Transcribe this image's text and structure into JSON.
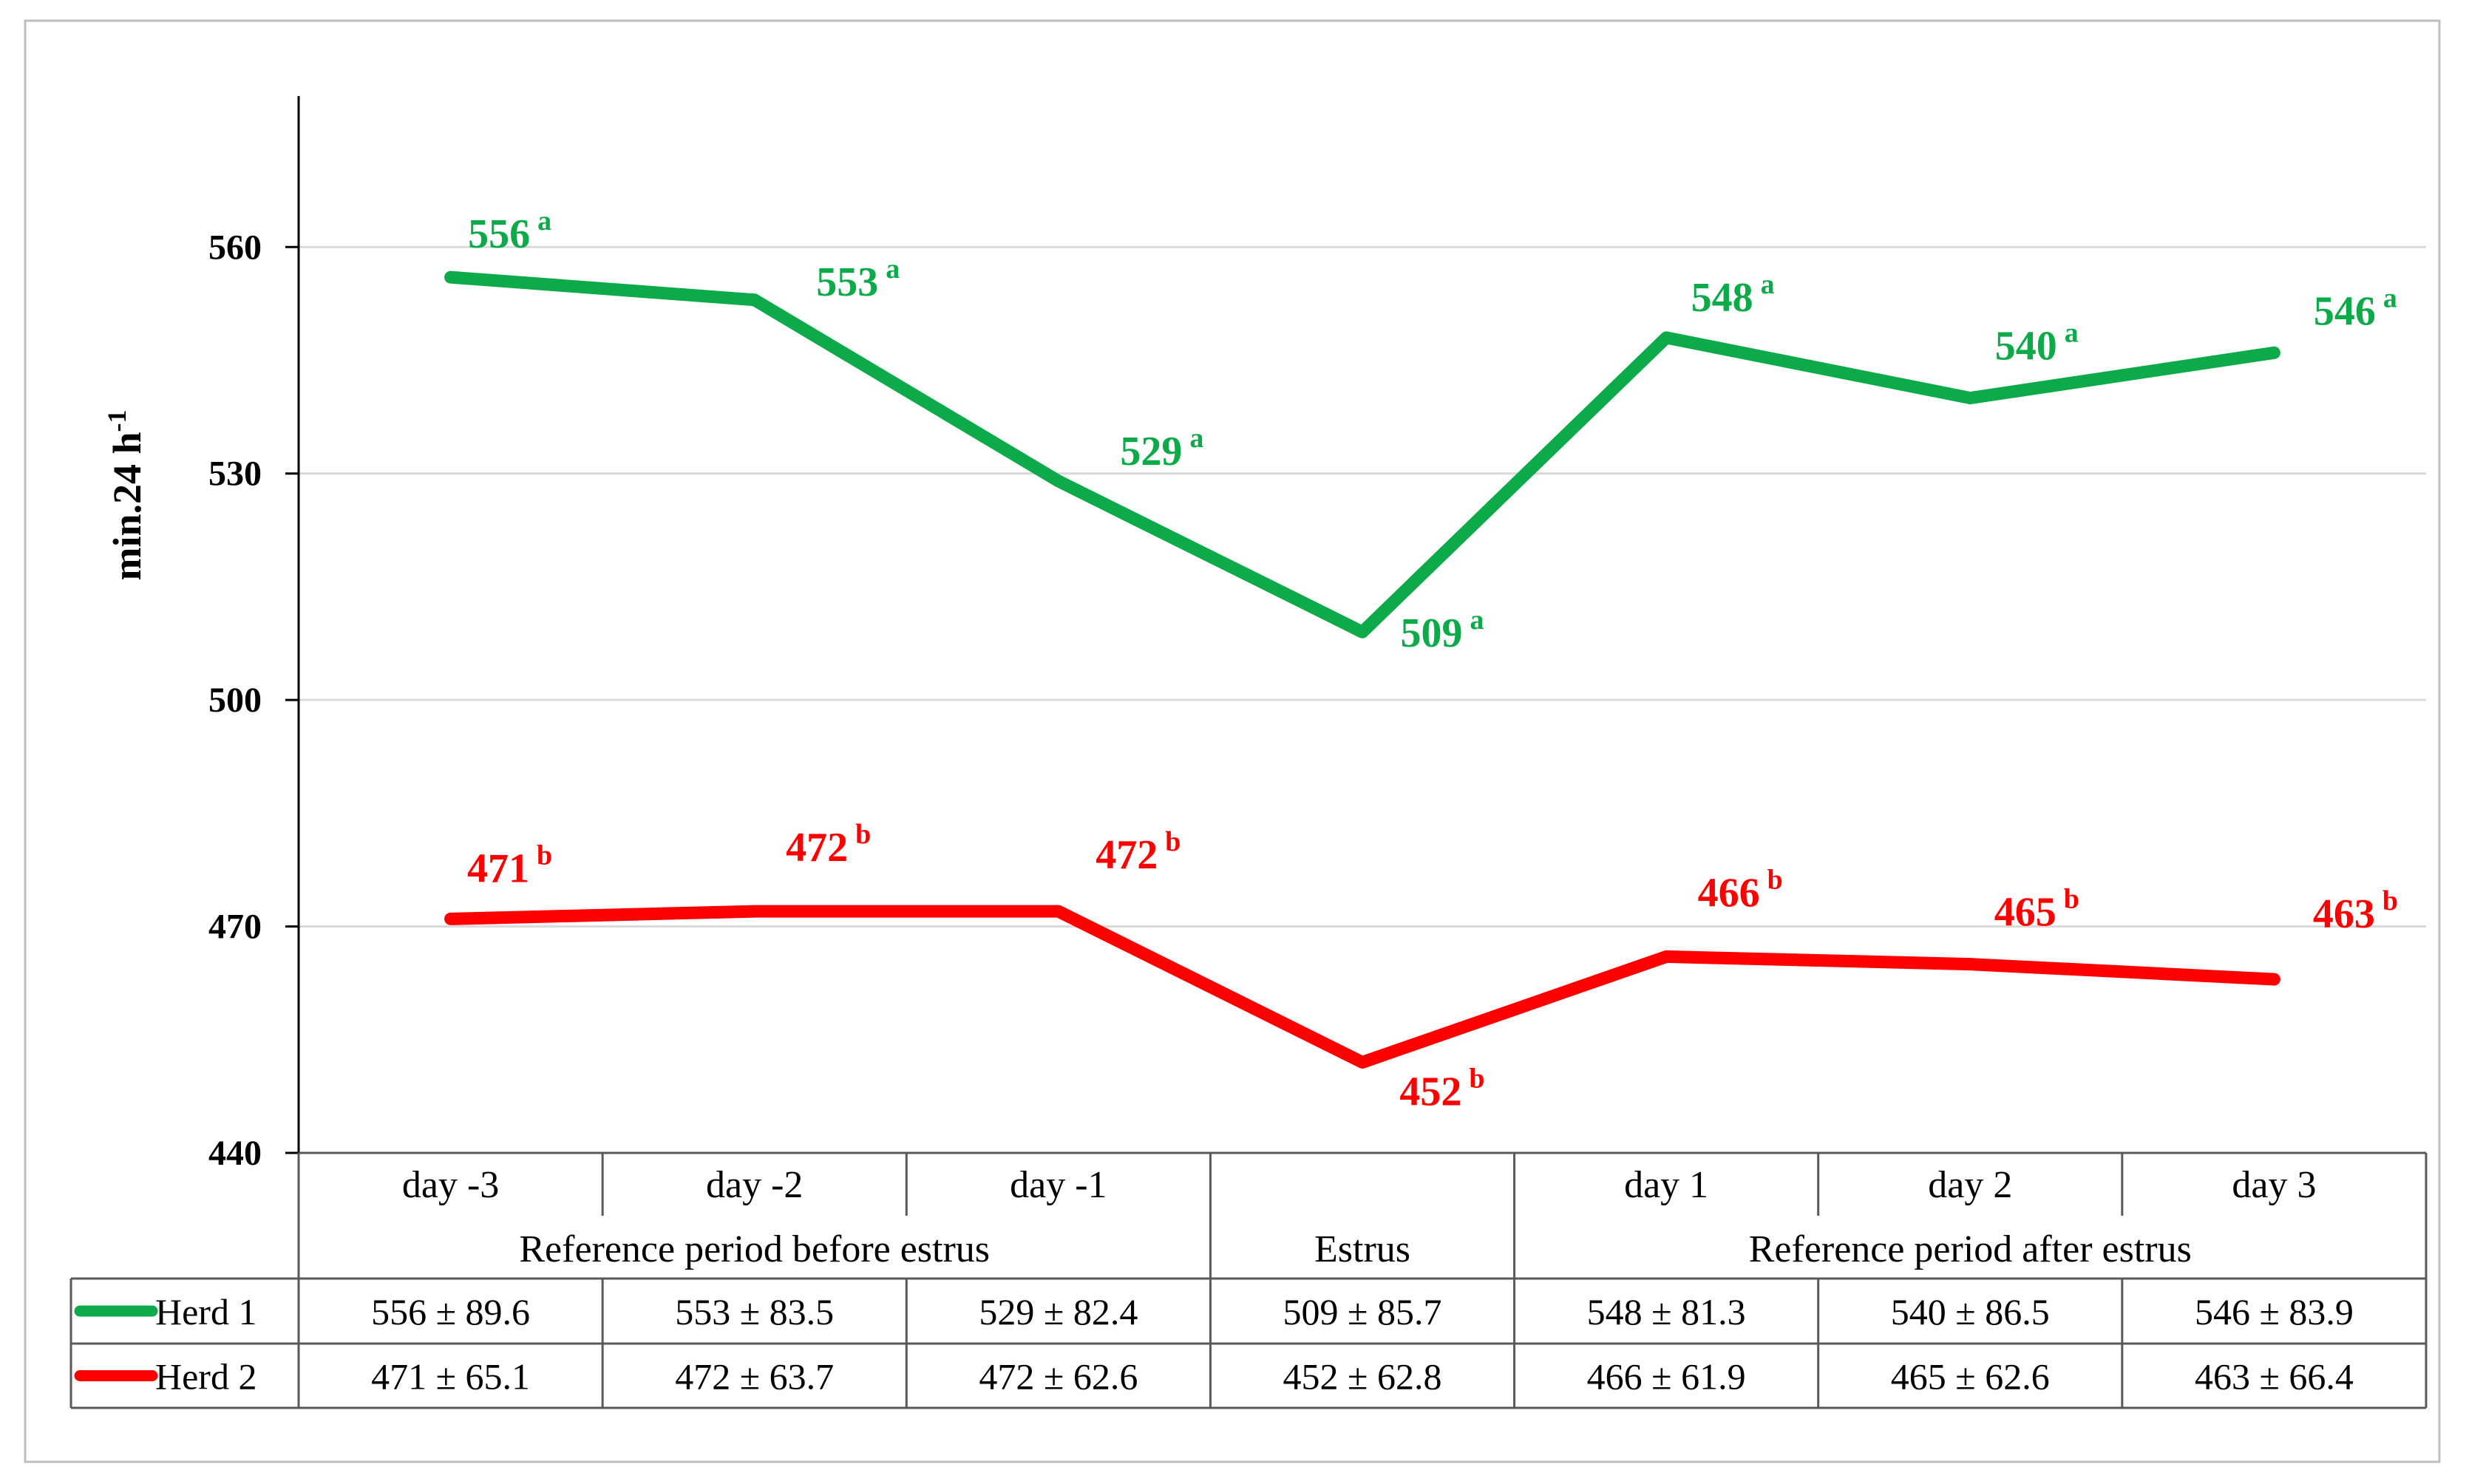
{
  "chart_data": {
    "type": "line",
    "ylabel": "min.24 h",
    "ylabel_superscript": "-1",
    "ylim": [
      440,
      580
    ],
    "yticks": [
      440,
      470,
      500,
      530,
      560
    ],
    "grid": true,
    "categories": [
      "day -3",
      "day -2",
      "day -1",
      "",
      "day 1",
      "day 2",
      "day 3"
    ],
    "groups": [
      {
        "label": "Reference period before estrus",
        "span": [
          0,
          2
        ]
      },
      {
        "label": "Estrus",
        "span": [
          3,
          3
        ]
      },
      {
        "label": "Reference period after estrus",
        "span": [
          4,
          6
        ]
      }
    ],
    "series": [
      {
        "name": "Herd 1",
        "color": "#0daa4a",
        "values": [
          556,
          553,
          529,
          509,
          548,
          540,
          546
        ],
        "value_labels": [
          "556",
          "553",
          "529",
          "509",
          "548",
          "540",
          "546"
        ],
        "superscript": "a",
        "table": [
          "556 ± 89.6",
          "553 ± 83.5",
          "529 ± 82.4",
          "509 ± 85.7",
          "548 ± 81.3",
          "540 ± 86.5",
          "546 ± 83.9"
        ]
      },
      {
        "name": "Herd 2",
        "color": "#ff0000",
        "values": [
          471,
          472,
          472,
          452,
          466,
          465,
          463
        ],
        "value_labels": [
          "471",
          "472",
          "472",
          "452",
          "466",
          "465",
          "463"
        ],
        "superscript": "b",
        "table": [
          "471 ± 65.1",
          "472 ± 63.7",
          "472 ± 62.6",
          "452 ± 62.8",
          "466 ± 61.9",
          "465 ± 62.6",
          "463 ± 66.4"
        ]
      }
    ]
  }
}
